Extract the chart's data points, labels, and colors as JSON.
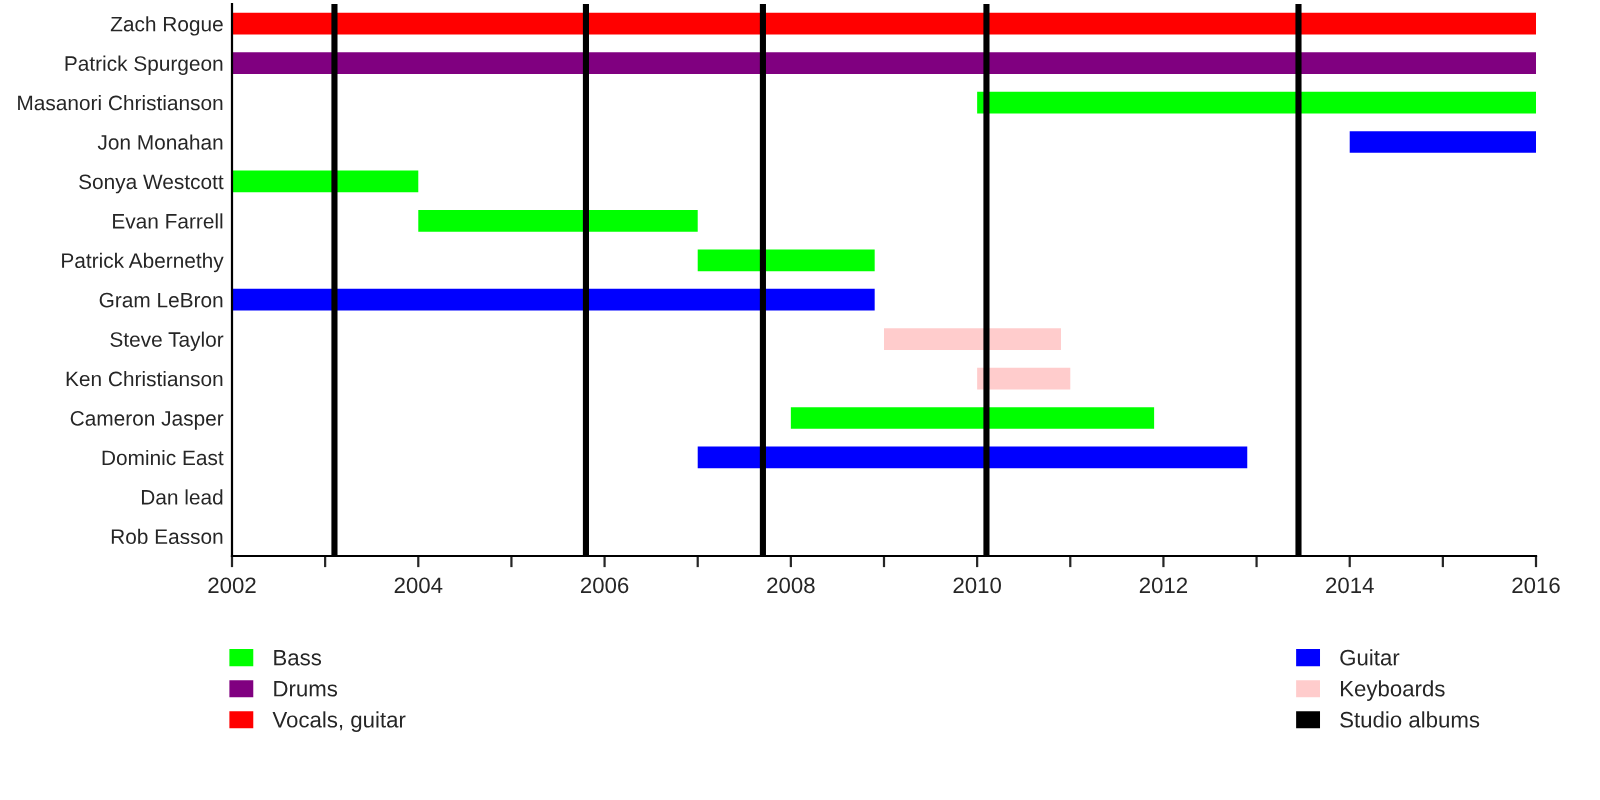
{
  "chart_data": {
    "type": "bar",
    "orientation": "horizontal",
    "categories": [
      "Zach Rogue",
      "Patrick Spurgeon",
      "Masanori Christianson",
      "Jon Monahan",
      "Sonya Westcott",
      "Evan Farrell",
      "Patrick Abernethy",
      "Gram LeBron",
      "Steve Taylor",
      "Ken Christianson",
      "Cameron Jasper",
      "Dominic East",
      "Dan lead",
      "Rob Easson"
    ],
    "series": [
      {
        "name": "Bass",
        "color": "#00ff00",
        "base": [
          null,
          null,
          2010,
          null,
          2002,
          2004,
          2007,
          null,
          null,
          null,
          2008,
          null,
          null,
          null
        ],
        "values": [
          null,
          null,
          6,
          null,
          2,
          3,
          1.9,
          null,
          null,
          null,
          3.9,
          null,
          null,
          null
        ]
      },
      {
        "name": "Drums",
        "color": "#800080",
        "base": [
          null,
          2002,
          null,
          null,
          null,
          null,
          null,
          null,
          null,
          null,
          null,
          null,
          null,
          null
        ],
        "values": [
          null,
          14,
          null,
          null,
          null,
          null,
          null,
          null,
          null,
          null,
          null,
          null,
          null,
          null
        ]
      },
      {
        "name": "Vocals, guitar",
        "color": "#ff0000",
        "base": [
          2002,
          null,
          null,
          null,
          null,
          null,
          null,
          null,
          null,
          null,
          null,
          null,
          null,
          null
        ],
        "values": [
          14,
          null,
          null,
          null,
          null,
          null,
          null,
          null,
          null,
          null,
          null,
          null,
          null,
          null
        ]
      },
      {
        "name": "Guitar",
        "color": "#0000ff",
        "base": [
          null,
          null,
          null,
          2014,
          null,
          null,
          null,
          2002,
          null,
          null,
          null,
          2007,
          null,
          null
        ],
        "values": [
          null,
          null,
          null,
          2,
          null,
          null,
          null,
          6.9,
          null,
          null,
          null,
          5.9,
          null,
          null
        ]
      },
      {
        "name": "Keyboards",
        "color": "#ffcccc",
        "base": [
          null,
          null,
          null,
          null,
          null,
          null,
          null,
          null,
          2009,
          2010,
          null,
          null,
          null,
          null
        ],
        "values": [
          null,
          null,
          null,
          null,
          null,
          null,
          null,
          null,
          1.9,
          1,
          null,
          null,
          null,
          null
        ]
      }
    ],
    "ref_lines": [
      {
        "axis": "x",
        "value": 2003.1,
        "label": "Studio albums",
        "color": "#000000"
      },
      {
        "axis": "x",
        "value": 2005.8,
        "color": "#000000"
      },
      {
        "axis": "x",
        "value": 2007.7,
        "color": "#000000"
      },
      {
        "axis": "x",
        "value": 2010.1,
        "color": "#000000"
      },
      {
        "axis": "x",
        "value": 2013.45,
        "color": "#000000"
      }
    ],
    "xlim": [
      2002,
      2016
    ],
    "xticks": [
      2002,
      {
        "value": 2003,
        "label": null
      },
      2004,
      {
        "value": 2005,
        "label": null
      },
      2006,
      {
        "value": 2007,
        "label": null
      },
      2008,
      {
        "value": 2009,
        "label": null
      },
      2010,
      {
        "value": 2011,
        "label": null
      },
      2012,
      {
        "value": 2013,
        "label": null
      },
      2014,
      {
        "value": 2015,
        "label": null
      },
      2016
    ],
    "legend": "bottom"
  }
}
